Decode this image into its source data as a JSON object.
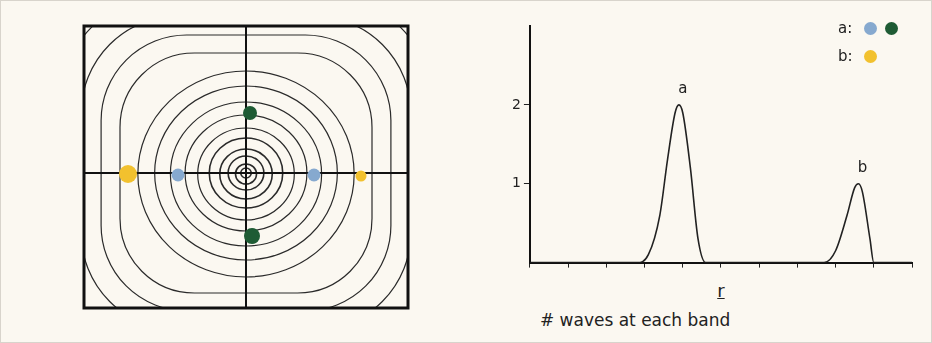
{
  "diagram": {
    "left_panel": {
      "dots": [
        {
          "group": "a",
          "color": "#1e5b34"
        },
        {
          "group": "a",
          "color": "#1e5b34"
        },
        {
          "group": "a",
          "color": "#86a9cf"
        },
        {
          "group": "a",
          "color": "#86a9cf"
        },
        {
          "group": "b",
          "color": "#f2c12e"
        },
        {
          "group": "b",
          "color": "#f2c12e"
        }
      ]
    },
    "key": [
      {
        "label": "a:",
        "colors": [
          "#86a9cf",
          "#1e5b34"
        ]
      },
      {
        "label": "b:",
        "colors": [
          "#f2c12e"
        ]
      }
    ]
  },
  "chart_data": {
    "type": "line",
    "xlabel": "r",
    "caption": "# waves at each band",
    "x": [
      0,
      1,
      2,
      2.8,
      3.1,
      3.4,
      3.6,
      3.8,
      3.9,
      4.0,
      4.2,
      4.4,
      4.6,
      5,
      6,
      7,
      7.7,
      8.0,
      8.3,
      8.5,
      8.6,
      8.7,
      8.9,
      9.0,
      9.5,
      10
    ],
    "values": [
      0,
      0,
      0,
      0,
      0.1,
      0.6,
      1.3,
      1.9,
      2,
      1.9,
      1.2,
      0.3,
      0,
      0,
      0,
      0,
      0,
      0.15,
      0.6,
      0.95,
      1,
      0.9,
      0.3,
      0,
      0,
      0
    ],
    "color": "#222222",
    "xlim": [
      0,
      10
    ],
    "xticks": [
      0,
      1,
      2,
      3,
      4,
      5,
      6,
      7,
      8,
      9,
      10
    ],
    "ylim": [
      0,
      3
    ],
    "yticks": [
      1,
      2
    ],
    "tick_labels": "y",
    "annotations": [
      {
        "text": "a",
        "x": 3.9,
        "y": 2
      },
      {
        "text": "b",
        "x": 8.6,
        "y": 1
      }
    ]
  }
}
